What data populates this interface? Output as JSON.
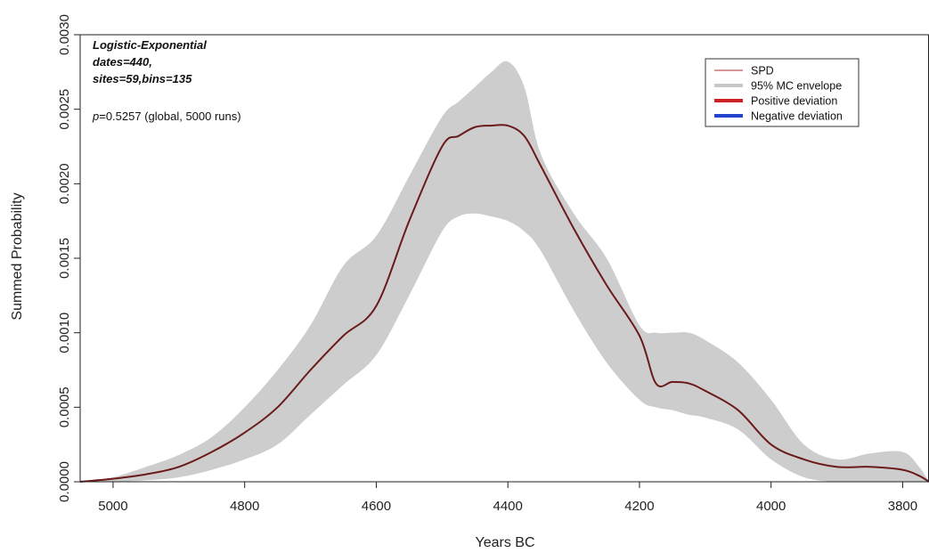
{
  "chart_data": {
    "type": "area",
    "xlabel": "Years BC",
    "ylabel": "Summed Probability",
    "xlim": [
      5050,
      3760
    ],
    "ylim": [
      0,
      0.003
    ],
    "x_reversed": true,
    "x_ticks": [
      "5000",
      "4800",
      "4600",
      "4400",
      "4200",
      "4000",
      "3800"
    ],
    "y_ticks": [
      "0.0000",
      "0.0005",
      "0.0010",
      "0.0015",
      "0.0020",
      "0.0025",
      "0.0030"
    ],
    "annotations": {
      "model": "Logistic-Exponential",
      "dates": "dates=440,",
      "sites_bins": "sites=59,bins=135",
      "p_symbol": "p",
      "p_text": "=0.5257 (global, 5000 runs)"
    },
    "legend": {
      "position": "top-right",
      "entries": [
        {
          "label": "SPD",
          "color": "#b03030",
          "style": "thin-line"
        },
        {
          "label": "95% MC envelope",
          "color": "#c8c8c8",
          "style": "thick-line"
        },
        {
          "label": "Positive deviation",
          "color": "#cc2222",
          "style": "thick-line"
        },
        {
          "label": "Negative deviation",
          "color": "#2244cc",
          "style": "thick-line"
        }
      ]
    },
    "colors": {
      "envelope": "#cdcdcd",
      "spd_line": "#6b1a1a"
    },
    "x": [
      5050,
      5000,
      4950,
      4900,
      4850,
      4800,
      4750,
      4700,
      4650,
      4600,
      4550,
      4500,
      4475,
      4450,
      4425,
      4400,
      4375,
      4350,
      4300,
      4250,
      4200,
      4175,
      4150,
      4125,
      4100,
      4050,
      4000,
      3950,
      3900,
      3850,
      3800,
      3775,
      3760
    ],
    "series": [
      {
        "name": "SPD",
        "values": [
          0.0,
          2e-05,
          5e-05,
          0.0001,
          0.0002,
          0.00033,
          0.0005,
          0.00075,
          0.00098,
          0.00118,
          0.00175,
          0.00225,
          0.00232,
          0.00238,
          0.00239,
          0.00239,
          0.00232,
          0.00212,
          0.0017,
          0.00132,
          0.00098,
          0.00066,
          0.00067,
          0.00066,
          0.00061,
          0.00048,
          0.00025,
          0.00015,
          0.0001,
          0.0001,
          8e-05,
          4e-05,
          0.0
        ]
      },
      {
        "name": "95% MC envelope",
        "upper": [
          0.0,
          3e-05,
          0.0001,
          0.00018,
          0.0003,
          0.0005,
          0.00075,
          0.00105,
          0.00145,
          0.00165,
          0.00205,
          0.00245,
          0.00255,
          0.00265,
          0.00275,
          0.00282,
          0.00265,
          0.0022,
          0.0018,
          0.0015,
          0.00105,
          0.001,
          0.001,
          0.001,
          0.00095,
          0.0008,
          0.00055,
          0.00025,
          0.00015,
          0.00019,
          0.0002,
          0.0001,
          0.0
        ],
        "lower": [
          0.0,
          0.0,
          1e-05,
          3e-05,
          8e-05,
          0.00015,
          0.00025,
          0.00045,
          0.00065,
          0.00085,
          0.00125,
          0.00168,
          0.00178,
          0.0018,
          0.00178,
          0.00175,
          0.00168,
          0.00155,
          0.00115,
          0.0008,
          0.00055,
          0.0005,
          0.00048,
          0.00045,
          0.00043,
          0.00035,
          0.00015,
          3e-05,
          0.0,
          0.0,
          0.0,
          0.0,
          0.0
        ]
      }
    ]
  }
}
